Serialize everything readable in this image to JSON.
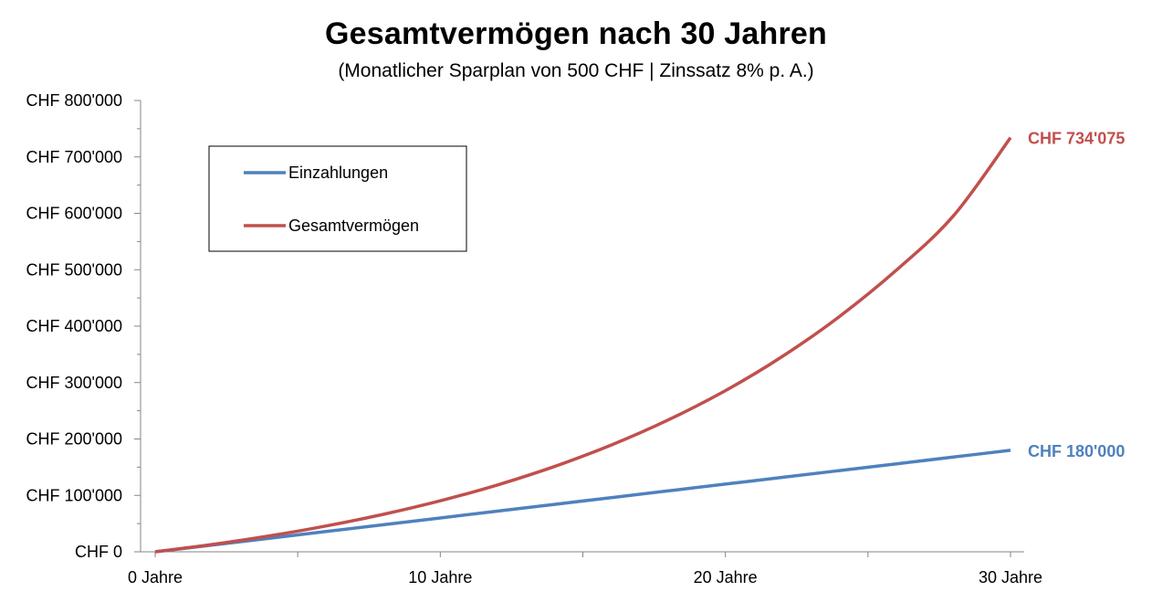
{
  "chart_data": {
    "type": "line",
    "title": "Gesamtvermögen nach 30 Jahren",
    "subtitle": "(Monatlicher Sparplan von 500 CHF | Zinssatz 8% p. A.)",
    "x": [
      0,
      2,
      4,
      6,
      8,
      10,
      12,
      14,
      16,
      18,
      20,
      22,
      24,
      26,
      28,
      30
    ],
    "x_tick_values": [
      0,
      10,
      20,
      30
    ],
    "x_tick_labels": [
      "0 Jahre",
      "10 Jahre",
      "20 Jahre",
      "30 Jahre"
    ],
    "xlim": [
      0,
      30
    ],
    "ylim": [
      0,
      800000
    ],
    "y_tick_values": [
      0,
      100000,
      200000,
      300000,
      400000,
      500000,
      600000,
      700000,
      800000
    ],
    "y_tick_labels": [
      "CHF 0",
      "CHF 100'000",
      "CHF 200'000",
      "CHF 300'000",
      "CHF 400'000",
      "CHF 500'000",
      "CHF 600'000",
      "CHF 700'000",
      "CHF 800'000"
    ],
    "legend_position": "top-left",
    "series": [
      {
        "name": "Einzahlungen",
        "color": "#4F81BD",
        "values": [
          0,
          12000,
          24000,
          36000,
          48000,
          60000,
          72000,
          84000,
          96000,
          108000,
          120000,
          132000,
          144000,
          156000,
          168000,
          180000
        ],
        "end_label": "CHF 180'000"
      },
      {
        "name": "Gesamtvermögen",
        "color": "#C0504D",
        "values": [
          0,
          12970,
          28100,
          45760,
          66360,
          90390,
          118430,
          151140,
          189300,
          233810,
          285740,
          346320,
          417000,
          499450,
          595640,
          734075
        ],
        "end_label": "CHF 734'075"
      }
    ]
  }
}
